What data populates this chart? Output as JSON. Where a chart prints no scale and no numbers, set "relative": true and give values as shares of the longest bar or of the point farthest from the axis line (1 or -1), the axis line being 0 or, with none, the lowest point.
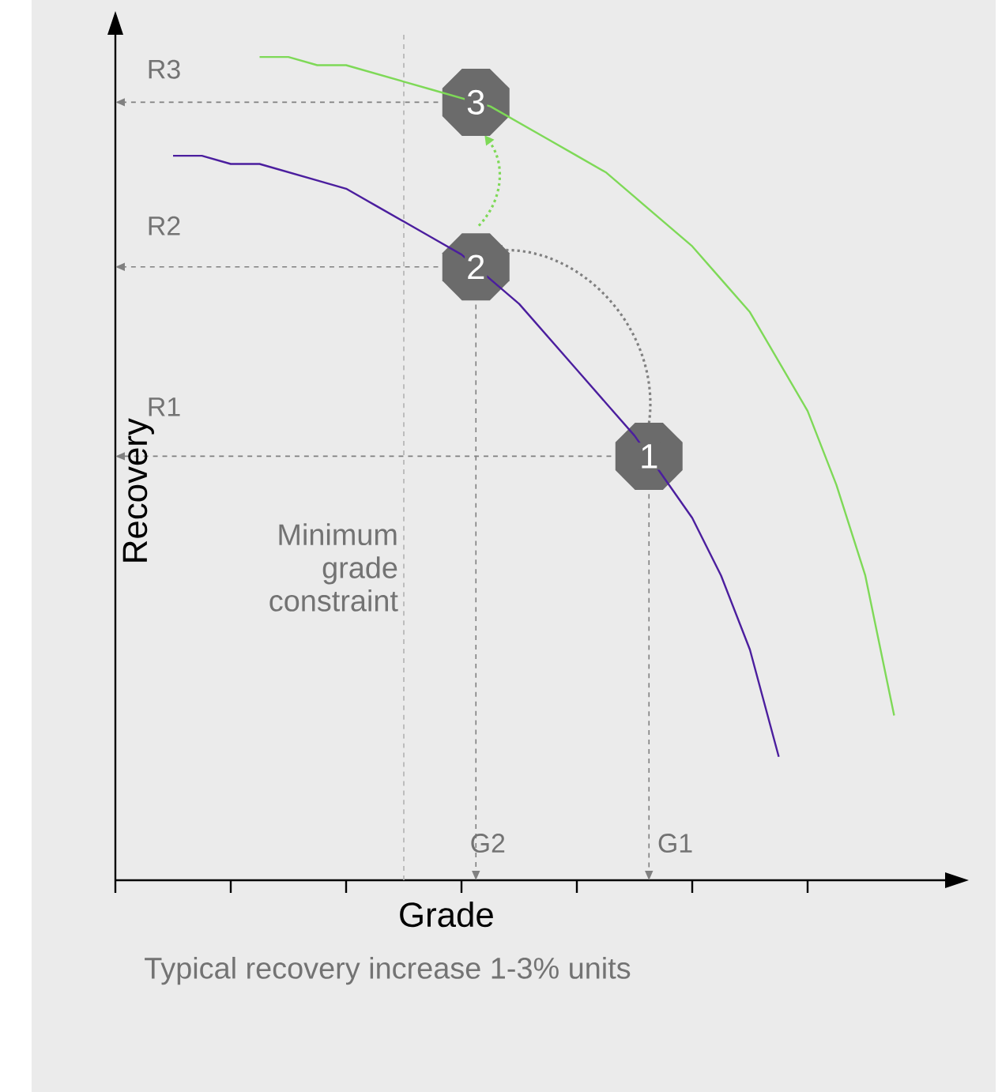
{
  "chart_data": {
    "type": "line",
    "relative": true,
    "xlabel": "Grade",
    "ylabel": "Recovery",
    "categories": [
      null,
      null,
      null,
      null,
      null,
      null,
      null,
      null,
      null,
      null,
      null,
      null,
      null,
      null,
      null,
      null,
      null,
      null,
      null,
      null,
      null,
      null,
      null,
      null,
      null,
      null,
      null,
      null,
      null,
      null
    ],
    "series": [
      {
        "color": "#4b1e9e",
        "values": [
          null,
          null,
          0.88,
          0.88,
          0.87,
          0.87,
          0.86,
          0.85,
          0.84,
          0.82,
          0.8,
          0.78,
          0.76,
          0.73,
          0.7,
          0.66,
          0.62,
          0.58,
          0.54,
          0.49,
          0.44,
          0.37,
          0.28,
          0.15,
          null,
          null,
          null,
          null,
          null,
          null
        ]
      },
      {
        "color": "#7ed957",
        "values": [
          null,
          null,
          null,
          null,
          null,
          1.0,
          1.0,
          0.99,
          0.99,
          0.98,
          0.97,
          0.96,
          0.95,
          0.94,
          0.92,
          0.9,
          0.88,
          0.86,
          0.83,
          0.8,
          0.77,
          0.73,
          0.69,
          0.63,
          0.57,
          0.48,
          0.37,
          0.2,
          null,
          null
        ]
      }
    ],
    "annotations": [
      "R3",
      "R2",
      "R1",
      "G2",
      "G1",
      "1",
      "2",
      "3",
      "Typical recovery increase 1-3% units",
      "Minimum grade constraint"
    ]
  }
}
